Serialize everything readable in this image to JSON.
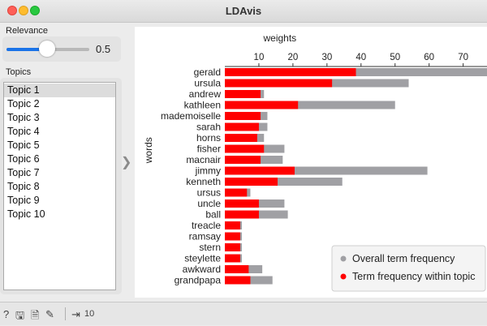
{
  "window": {
    "title": "LDAvis"
  },
  "relevance": {
    "label": "Relevance",
    "value": "0.5",
    "fraction": 0.5
  },
  "topics": {
    "label": "Topics",
    "items": [
      "Topic 1",
      "Topic 2",
      "Topic 3",
      "Topic 4",
      "Topic 5",
      "Topic 6",
      "Topic 7",
      "Topic 8",
      "Topic 9",
      "Topic 10"
    ],
    "selected_index": 0
  },
  "status": {
    "count": "10"
  },
  "icons": [
    "help-icon",
    "save-icon",
    "report-icon",
    "brush-icon",
    "input-icon",
    "collapse-arrow-icon"
  ],
  "chart_data": {
    "type": "bar",
    "orientation": "horizontal",
    "xlabel": "weights",
    "ylabel": "words",
    "x_axis_position": "top",
    "xlim": [
      0,
      77
    ],
    "xticks": [
      "10",
      "20",
      "30",
      "40",
      "50",
      "60",
      "70"
    ],
    "categories": [
      "gerald",
      "ursula",
      "andrew",
      "kathleen",
      "mademoiselle",
      "sarah",
      "horns",
      "fisher",
      "macnair",
      "jimmy",
      "kenneth",
      "ursus",
      "uncle",
      "ball",
      "treacle",
      "ramsay",
      "stern",
      "steylette",
      "awkward",
      "grandpapa"
    ],
    "series": [
      {
        "name": "Overall term frequency",
        "color": "#a0a0a4",
        "values": [
          78,
          54,
          11.5,
          50,
          12.5,
          12.5,
          11.5,
          17.5,
          17,
          59.5,
          34.5,
          7.5,
          17.5,
          18.5,
          5,
          5,
          5,
          5,
          11,
          14
        ]
      },
      {
        "name": "Term frequency within topic",
        "color": "#ff0000",
        "values": [
          38.5,
          31.5,
          10.5,
          21.5,
          10.5,
          10,
          9.5,
          11.5,
          10.5,
          20.5,
          15.5,
          6.5,
          10,
          10,
          4.5,
          4.5,
          4.5,
          4.5,
          7,
          7.5
        ]
      }
    ],
    "legend": {
      "position": "bottom-right",
      "items": [
        "Overall term frequency",
        "Term frequency within topic"
      ]
    },
    "grid": false
  }
}
